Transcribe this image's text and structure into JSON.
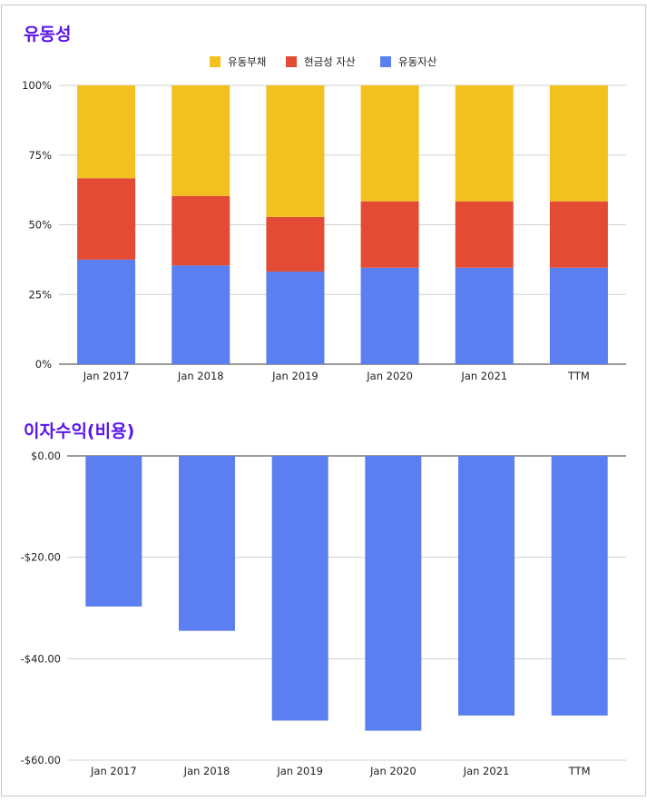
{
  "chart_data": [
    {
      "type": "bar",
      "stacked": true,
      "title": "유동성",
      "categories": [
        "Jan 2017",
        "Jan 2018",
        "Jan 2019",
        "Jan 2020",
        "Jan 2021",
        "TTM"
      ],
      "series": [
        {
          "name": "유동부채",
          "color": "#f2c11f",
          "values": [
            33.3,
            39.7,
            47.2,
            41.6,
            41.6,
            41.6
          ]
        },
        {
          "name": "현금성 자산",
          "color": "#e44b35",
          "values": [
            29.2,
            24.9,
            19.6,
            23.8,
            23.8,
            23.8
          ]
        },
        {
          "name": "유동자산",
          "color": "#5b7ef0",
          "values": [
            37.5,
            35.4,
            33.2,
            34.6,
            34.6,
            34.6
          ]
        }
      ],
      "legend_order": [
        "유동부채",
        "현금성 자산",
        "유동자산"
      ],
      "y_ticks": [
        "0%",
        "25%",
        "50%",
        "75%",
        "100%"
      ],
      "ylim": [
        0,
        100
      ],
      "legend_position": "top-center"
    },
    {
      "type": "bar",
      "title": "이자수익(비용)",
      "categories": [
        "Jan 2017",
        "Jan 2018",
        "Jan 2019",
        "Jan 2020",
        "Jan 2021",
        "TTM"
      ],
      "series": [
        {
          "name": "이자수익(비용)",
          "color": "#5b7ef0",
          "values": [
            -29.7,
            -34.5,
            -52.2,
            -54.2,
            -51.2,
            -51.2
          ]
        }
      ],
      "y_ticks": [
        "$0.00",
        "-$20.00",
        "-$40.00",
        "-$60.00"
      ],
      "ylim": [
        -60,
        0
      ]
    }
  ]
}
